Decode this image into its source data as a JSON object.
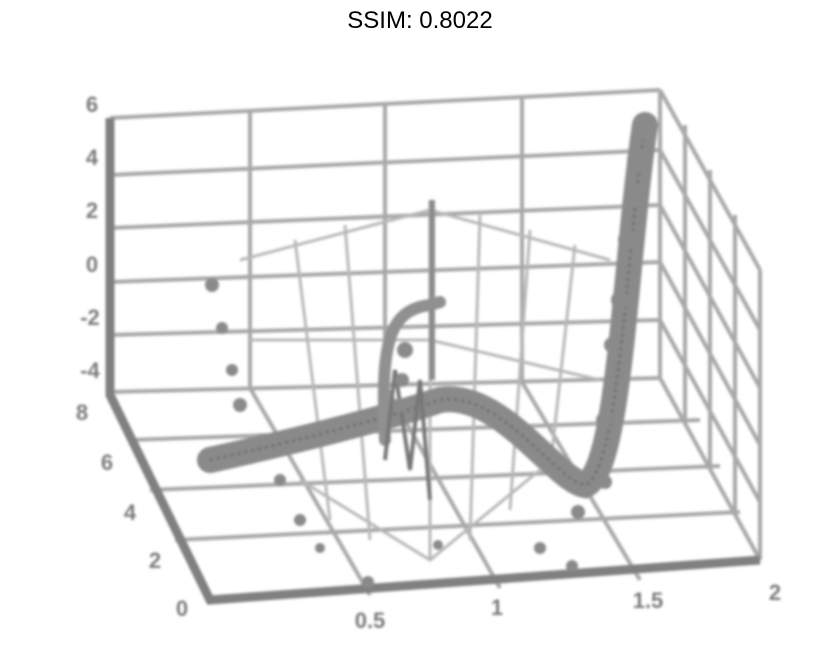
{
  "title": "SSIM: 0.8022",
  "z_ticks": [
    "6",
    "4",
    "2",
    "0",
    "-2",
    "-4"
  ],
  "y_ticks": [
    "8",
    "6",
    "4",
    "2",
    "0"
  ],
  "x_ticks": [
    "0.5",
    "1",
    "1.5",
    "2"
  ]
}
